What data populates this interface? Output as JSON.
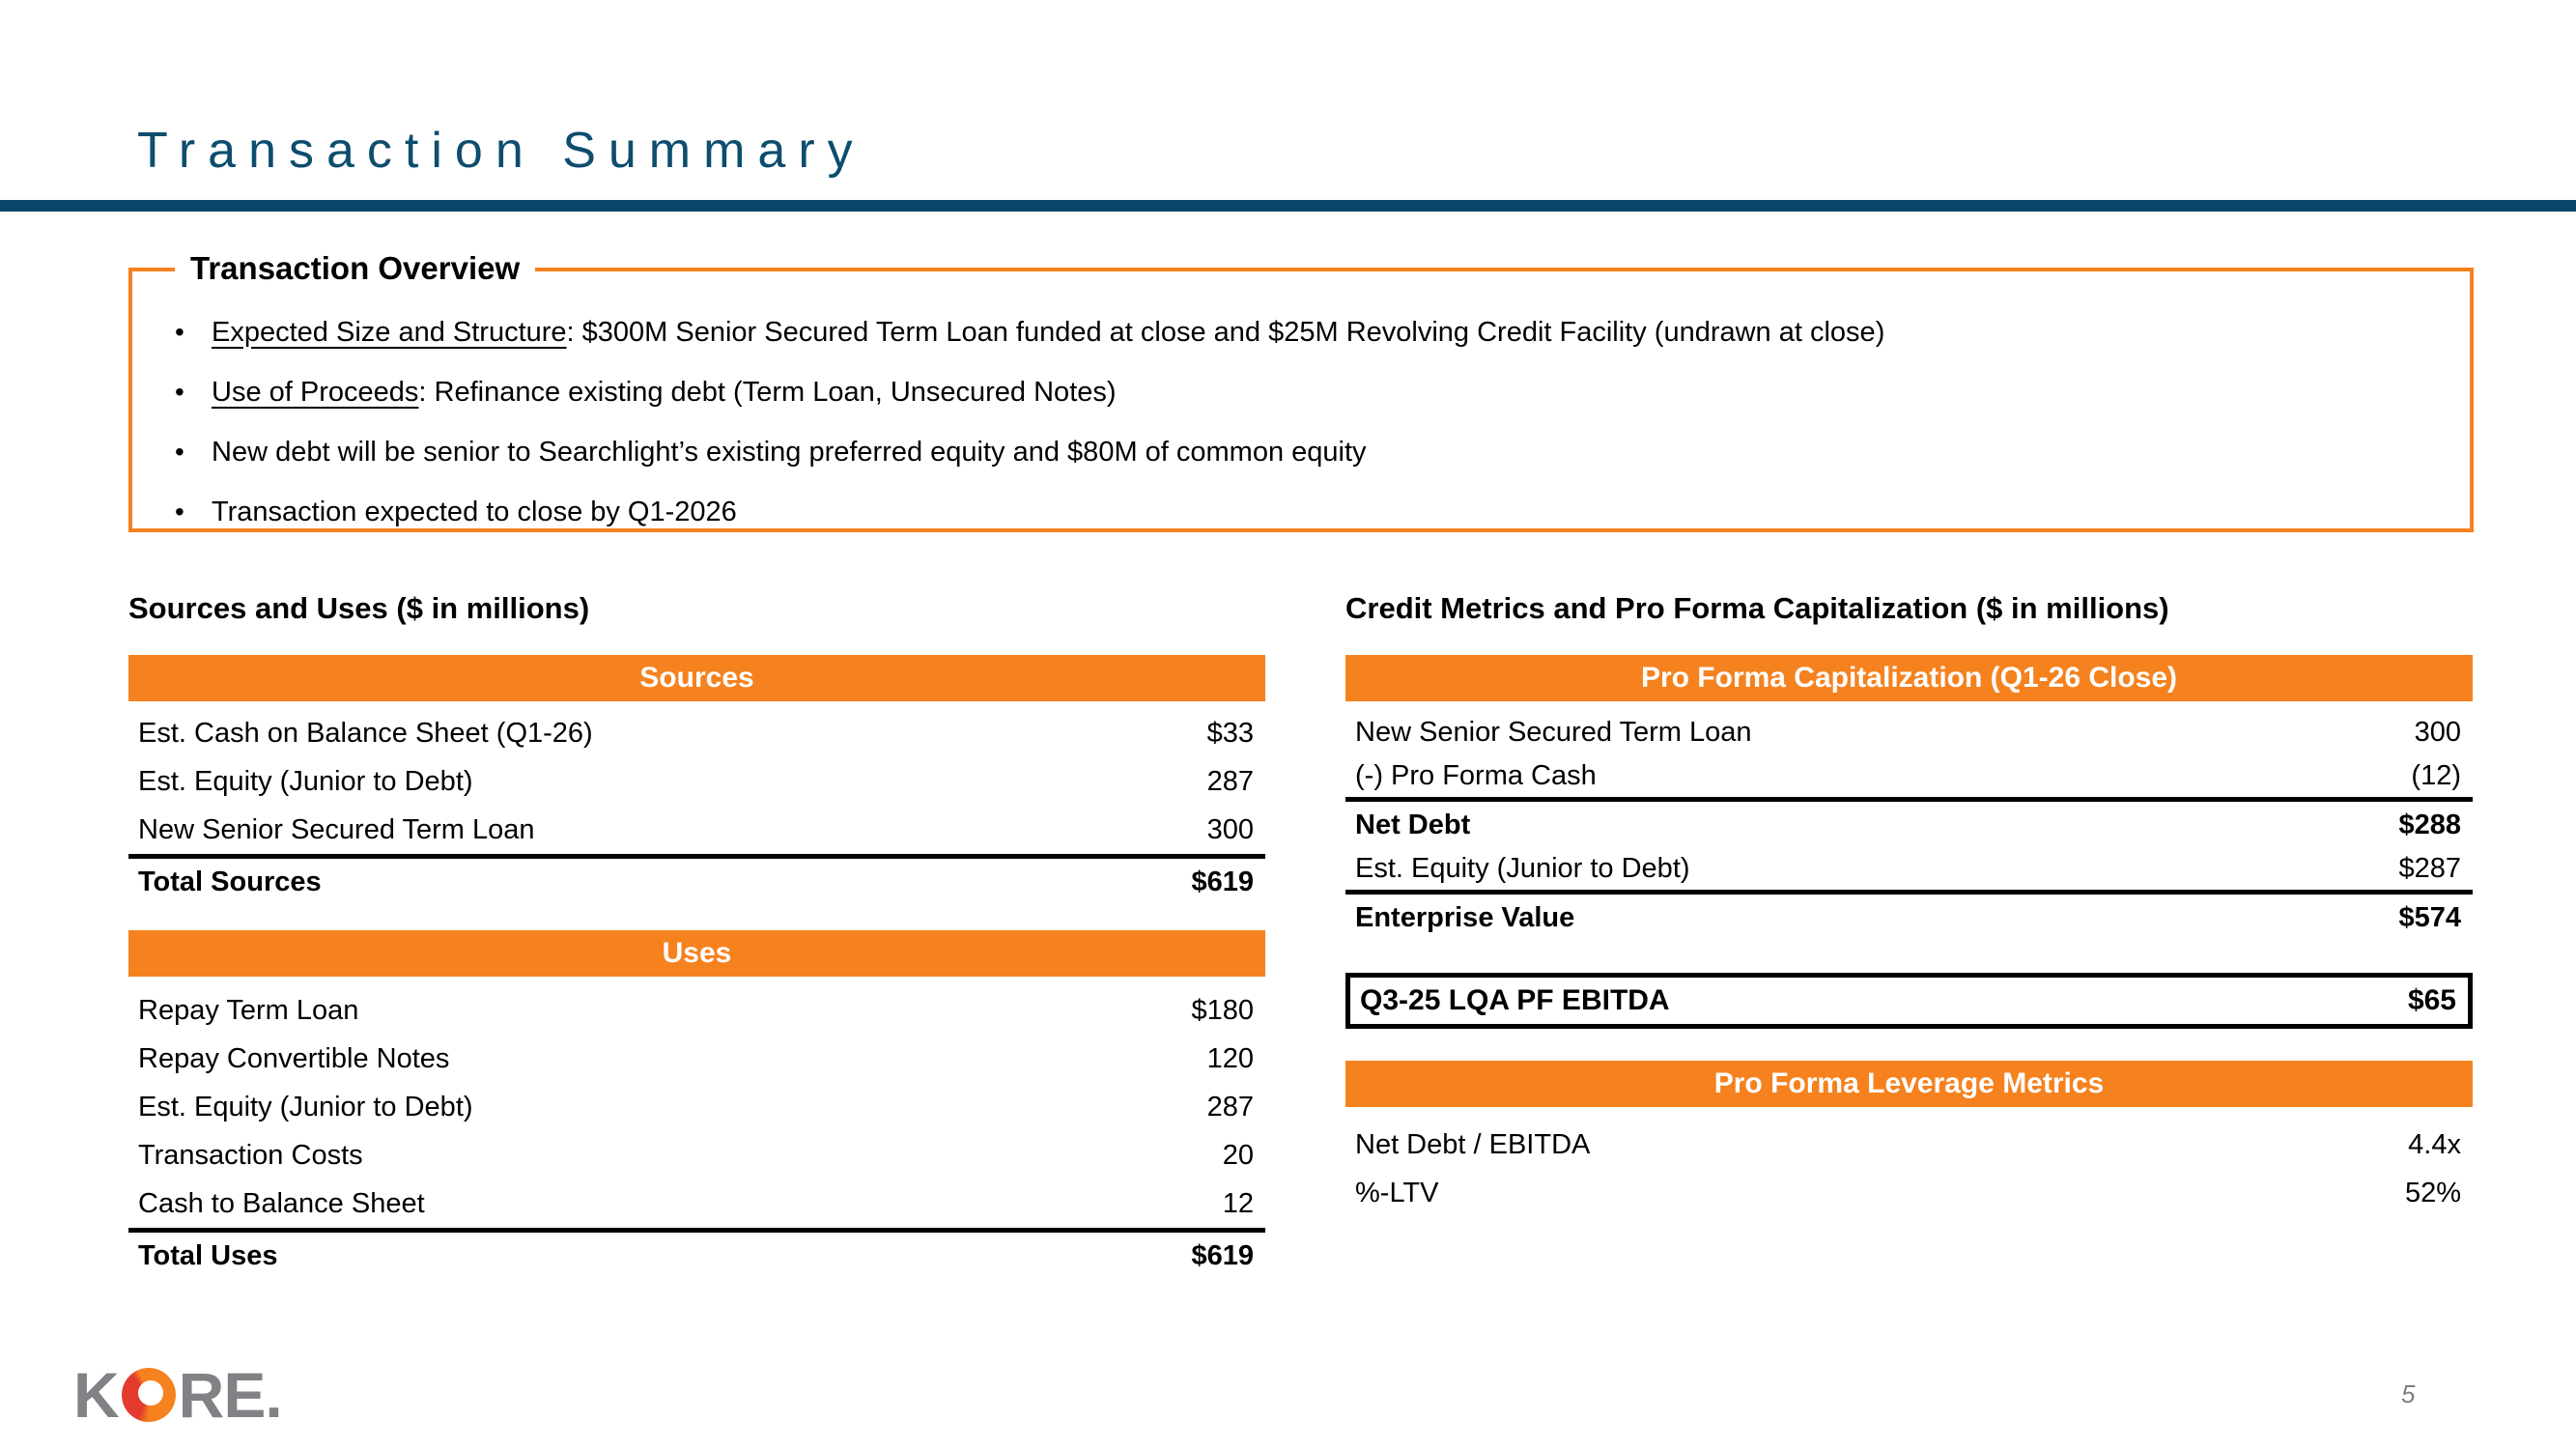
{
  "slide": {
    "title": "Transaction Summary",
    "accent_orange": "#F5821F",
    "title_teal": "#0D4D6E",
    "logo_gray": "#808285",
    "logo_red": "#E23B2E"
  },
  "overview": {
    "title": "Transaction Overview",
    "bullets": [
      {
        "lead": "Expected Size and Structure",
        "rest": ": $300M Senior Secured Term Loan funded at close and $25M Revolving Credit Facility (undrawn at close)"
      },
      {
        "lead": "Use of Proceeds",
        "rest": ": Refinance existing debt (Term Loan, Unsecured Notes)"
      },
      {
        "lead": "",
        "rest": "New debt will be senior to Searchlight’s existing preferred equity and $80M of common equity"
      },
      {
        "lead": "",
        "rest": "Transaction expected to close by Q1-2026"
      }
    ]
  },
  "sources_uses": {
    "heading": "Sources and Uses ($ in millions)",
    "sources": {
      "header": "Sources",
      "rows": [
        {
          "label": "Est. Cash on Balance Sheet (Q1-26)",
          "value": "$33"
        },
        {
          "label": "Est. Equity (Junior to Debt)",
          "value": "287"
        },
        {
          "label": "New Senior Secured Term Loan",
          "value": "300"
        }
      ],
      "total": {
        "label": "Total Sources",
        "value": "$619"
      }
    },
    "uses": {
      "header": "Uses",
      "rows": [
        {
          "label": "Repay Term Loan",
          "value": "$180"
        },
        {
          "label": "Repay Convertible Notes",
          "value": "120"
        },
        {
          "label": "Est. Equity (Junior to Debt)",
          "value": "287"
        },
        {
          "label": "Transaction Costs",
          "value": "20"
        },
        {
          "label": "Cash to Balance Sheet",
          "value": "12"
        }
      ],
      "total": {
        "label": "Total Uses",
        "value": "$619"
      }
    }
  },
  "credit_metrics": {
    "heading": "Credit Metrics and Pro Forma Capitalization ($ in millions)",
    "capitalization": {
      "header": "Pro Forma Capitalization (Q1-26 Close)",
      "rows": [
        {
          "label": "New Senior Secured Term Loan",
          "value": "300"
        },
        {
          "label": "(-) Pro Forma Cash",
          "value": "(12)"
        },
        {
          "label": "Net Debt",
          "value": "$288"
        },
        {
          "label": "Est. Equity (Junior to Debt)",
          "value": "$287"
        },
        {
          "label": "Enterprise Value",
          "value": "$574"
        }
      ]
    },
    "ebitda_box": {
      "label": "Q3-25 LQA PF EBITDA",
      "value": "$65"
    },
    "leverage": {
      "header": "Pro Forma Leverage Metrics",
      "rows": [
        {
          "label": "Net Debt / EBITDA",
          "value": "4.4x"
        },
        {
          "label": "%-LTV",
          "value": "52%"
        }
      ]
    }
  },
  "footer": {
    "logo_k": "K",
    "logo_re": "RE",
    "logo_dot": ".",
    "page_number": "5"
  }
}
